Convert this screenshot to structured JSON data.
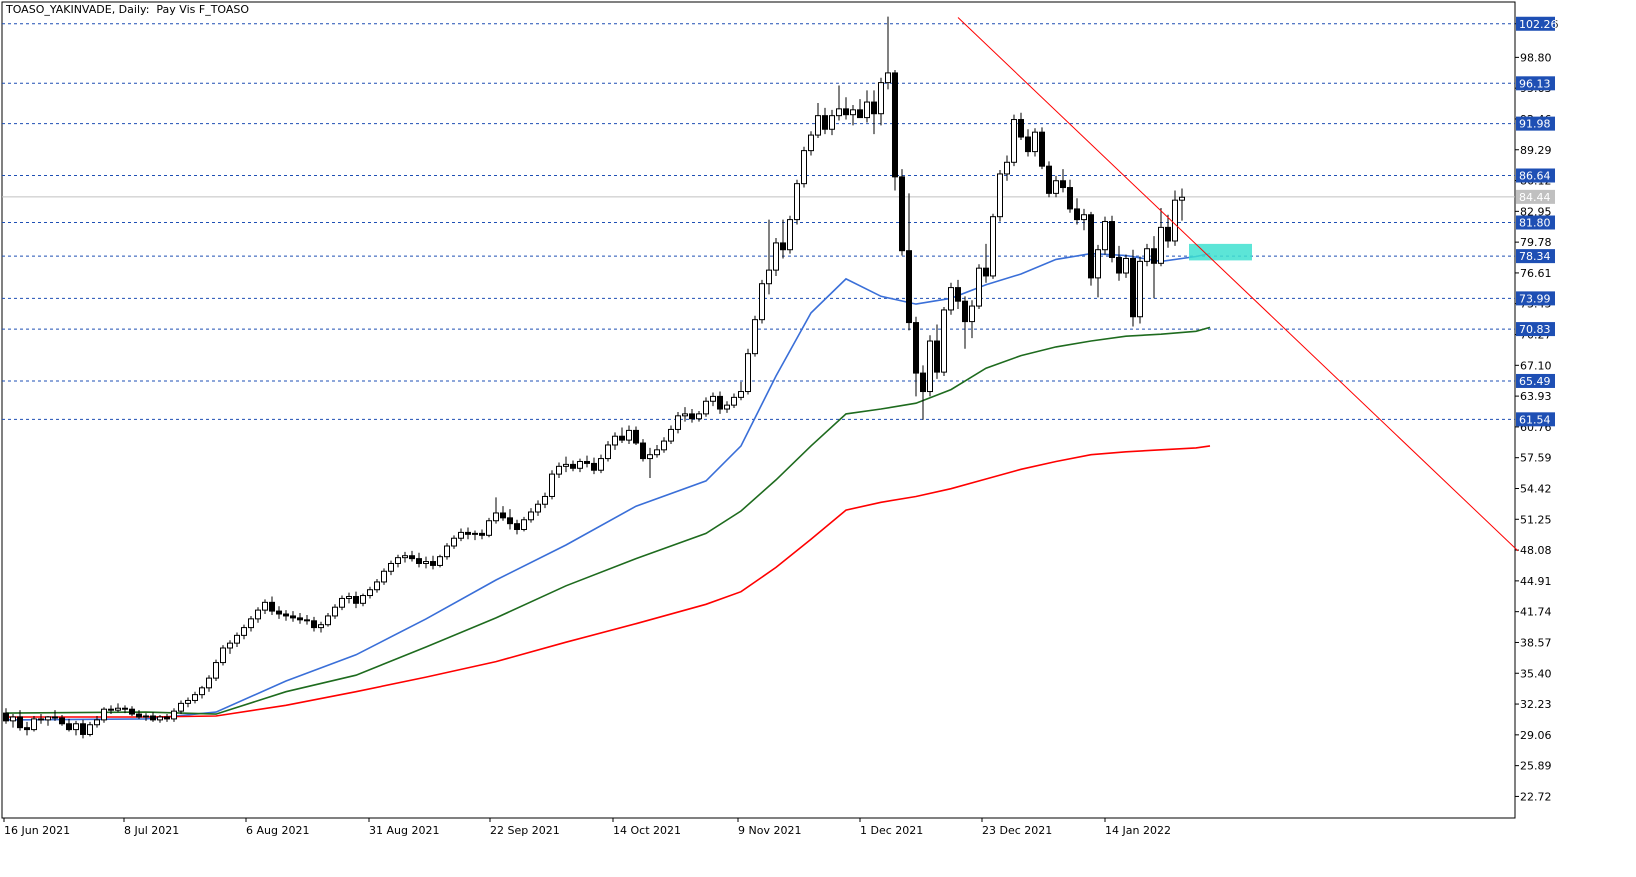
{
  "chart_data": {
    "type": "candlestick",
    "title": "TOASO_YAKINVADE, Daily:  Pay Vis F_TOASO",
    "timeframe": "Daily",
    "y_axis_ticks": [
      "102.26",
      "98.80",
      "95.63",
      "92.46",
      "89.29",
      "86.12",
      "82.95",
      "79.78",
      "76.61",
      "73.45",
      "70.27",
      "67.10",
      "63.93",
      "60.76",
      "57.59",
      "54.42",
      "51.25",
      "48.08",
      "44.91",
      "41.74",
      "38.57",
      "35.40",
      "32.23",
      "29.06",
      "25.89",
      "22.72"
    ],
    "x_axis_ticks": [
      "16 Jun 2021",
      "8 Jul 2021",
      "6 Aug 2021",
      "31 Aug 2021",
      "22 Sep 2021",
      "14 Oct 2021",
      "9 Nov 2021",
      "1 Dec 2021",
      "23 Dec 2021",
      "14 Jan 2022"
    ],
    "price_levels": [
      "102.26",
      "96.13",
      "91.98",
      "86.64",
      "81.80",
      "78.34",
      "73.99",
      "70.83",
      "65.49",
      "61.54"
    ],
    "current_price": "84.44",
    "ylim": [
      20.5,
      104.5
    ],
    "candles": [
      [
        31.3,
        31.8,
        30.2,
        30.5
      ],
      [
        30.5,
        31.2,
        29.8,
        30.9
      ],
      [
        30.9,
        31.6,
        29.5,
        29.8
      ],
      [
        29.8,
        30.4,
        29.0,
        29.6
      ],
      [
        29.6,
        31.0,
        29.4,
        30.7
      ],
      [
        30.7,
        31.2,
        30.2,
        30.6
      ],
      [
        30.6,
        31.0,
        30.0,
        30.9
      ],
      [
        30.9,
        31.6,
        30.5,
        30.8
      ],
      [
        30.8,
        31.1,
        30.0,
        30.2
      ],
      [
        30.2,
        30.7,
        29.4,
        29.6
      ],
      [
        29.6,
        30.5,
        29.0,
        30.2
      ],
      [
        30.2,
        30.6,
        28.7,
        29.1
      ],
      [
        29.1,
        30.4,
        28.9,
        30.1
      ],
      [
        30.1,
        31.0,
        29.8,
        30.6
      ],
      [
        30.6,
        31.9,
        30.3,
        31.7
      ],
      [
        31.7,
        32.1,
        31.2,
        31.6
      ],
      [
        31.6,
        32.3,
        31.4,
        31.8
      ],
      [
        31.8,
        32.1,
        31.3,
        31.7
      ],
      [
        31.7,
        32.0,
        31.0,
        31.2
      ],
      [
        31.2,
        31.6,
        30.7,
        30.9
      ],
      [
        30.9,
        31.3,
        30.5,
        31.0
      ],
      [
        31.0,
        31.4,
        30.4,
        30.6
      ],
      [
        30.6,
        31.1,
        30.3,
        30.9
      ],
      [
        30.9,
        31.2,
        30.4,
        30.7
      ],
      [
        30.7,
        31.8,
        30.4,
        31.5
      ],
      [
        31.5,
        32.6,
        31.2,
        32.3
      ],
      [
        32.3,
        32.9,
        31.9,
        32.6
      ],
      [
        32.6,
        33.5,
        32.3,
        33.2
      ],
      [
        33.2,
        34.1,
        32.8,
        33.9
      ],
      [
        33.9,
        35.2,
        33.5,
        34.9
      ],
      [
        34.9,
        36.8,
        34.6,
        36.5
      ],
      [
        36.5,
        38.3,
        36.2,
        38.0
      ],
      [
        38.0,
        38.8,
        37.4,
        38.5
      ],
      [
        38.5,
        39.6,
        38.1,
        39.3
      ],
      [
        39.3,
        40.4,
        38.9,
        40.1
      ],
      [
        40.1,
        41.3,
        39.7,
        41.0
      ],
      [
        41.0,
        42.2,
        40.6,
        41.9
      ],
      [
        41.9,
        43.0,
        41.5,
        42.7
      ],
      [
        42.7,
        43.3,
        41.4,
        41.8
      ],
      [
        41.8,
        42.3,
        41.0,
        41.5
      ],
      [
        41.5,
        41.9,
        40.8,
        41.3
      ],
      [
        41.3,
        41.8,
        40.7,
        41.1
      ],
      [
        41.1,
        41.6,
        40.5,
        40.9
      ],
      [
        40.9,
        41.4,
        40.4,
        40.8
      ],
      [
        40.8,
        41.2,
        39.7,
        40.1
      ],
      [
        40.1,
        40.7,
        39.6,
        40.4
      ],
      [
        40.4,
        41.6,
        40.2,
        41.3
      ],
      [
        41.3,
        42.5,
        41.0,
        42.2
      ],
      [
        42.2,
        43.4,
        41.9,
        43.1
      ],
      [
        43.1,
        43.7,
        42.6,
        43.3
      ],
      [
        43.3,
        43.8,
        42.1,
        42.6
      ],
      [
        42.6,
        43.6,
        42.3,
        43.4
      ],
      [
        43.4,
        44.3,
        43.1,
        44.0
      ],
      [
        44.0,
        45.1,
        43.7,
        44.8
      ],
      [
        44.8,
        46.2,
        44.5,
        45.9
      ],
      [
        45.9,
        47.0,
        45.5,
        46.7
      ],
      [
        46.7,
        47.6,
        46.3,
        47.3
      ],
      [
        47.3,
        47.9,
        46.8,
        47.5
      ],
      [
        47.5,
        48.0,
        46.9,
        47.2
      ],
      [
        47.2,
        47.8,
        46.3,
        46.7
      ],
      [
        46.7,
        47.4,
        46.2,
        46.9
      ],
      [
        46.9,
        47.5,
        46.1,
        46.5
      ],
      [
        46.5,
        47.6,
        46.3,
        47.4
      ],
      [
        47.4,
        48.8,
        47.1,
        48.5
      ],
      [
        48.5,
        49.6,
        48.2,
        49.3
      ],
      [
        49.3,
        50.3,
        49.0,
        49.9
      ],
      [
        49.9,
        50.4,
        49.2,
        49.7
      ],
      [
        49.7,
        50.1,
        49.1,
        49.8
      ],
      [
        49.8,
        50.2,
        49.2,
        49.6
      ],
      [
        49.6,
        51.4,
        49.4,
        51.1
      ],
      [
        51.1,
        53.5,
        50.8,
        51.9
      ],
      [
        51.9,
        52.6,
        51.1,
        51.4
      ],
      [
        51.4,
        52.3,
        50.2,
        50.8
      ],
      [
        50.8,
        51.2,
        49.7,
        50.2
      ],
      [
        50.2,
        51.5,
        50.0,
        51.2
      ],
      [
        51.2,
        52.4,
        50.9,
        52.0
      ],
      [
        52.0,
        53.2,
        51.6,
        52.8
      ],
      [
        52.8,
        54.0,
        52.4,
        53.6
      ],
      [
        53.6,
        56.3,
        53.3,
        55.9
      ],
      [
        55.9,
        57.1,
        55.5,
        56.7
      ],
      [
        56.7,
        57.7,
        56.1,
        56.9
      ],
      [
        56.9,
        57.3,
        56.2,
        56.5
      ],
      [
        56.5,
        57.5,
        56.1,
        57.2
      ],
      [
        57.2,
        57.8,
        56.6,
        57.0
      ],
      [
        57.0,
        57.6,
        55.9,
        56.3
      ],
      [
        56.3,
        57.9,
        56.0,
        57.5
      ],
      [
        57.5,
        59.3,
        57.2,
        58.9
      ],
      [
        58.9,
        60.2,
        58.4,
        59.8
      ],
      [
        59.8,
        60.7,
        59.1,
        59.4
      ],
      [
        59.4,
        60.9,
        59.0,
        60.4
      ],
      [
        60.4,
        60.8,
        58.9,
        59.1
      ],
      [
        59.1,
        59.5,
        57.2,
        57.5
      ],
      [
        57.5,
        58.6,
        55.5,
        57.9
      ],
      [
        57.9,
        58.9,
        57.6,
        58.4
      ],
      [
        58.4,
        59.7,
        58.1,
        59.3
      ],
      [
        59.3,
        60.9,
        59.0,
        60.5
      ],
      [
        60.5,
        62.3,
        60.1,
        61.9
      ],
      [
        61.9,
        62.8,
        61.3,
        62.1
      ],
      [
        62.1,
        62.6,
        61.2,
        61.6
      ],
      [
        61.6,
        62.4,
        61.3,
        62.1
      ],
      [
        62.1,
        63.8,
        61.8,
        63.4
      ],
      [
        63.4,
        64.3,
        62.9,
        63.9
      ],
      [
        63.9,
        64.4,
        62.1,
        62.6
      ],
      [
        62.6,
        63.4,
        62.2,
        63.0
      ],
      [
        63.0,
        64.2,
        62.7,
        63.8
      ],
      [
        63.8,
        65.4,
        63.5,
        64.4
      ],
      [
        64.4,
        68.8,
        64.1,
        68.3
      ],
      [
        68.3,
        72.2,
        68.0,
        71.8
      ],
      [
        71.8,
        75.9,
        71.4,
        75.5
      ],
      [
        75.5,
        82.1,
        74.4,
        76.9
      ],
      [
        76.9,
        80.2,
        76.3,
        79.7
      ],
      [
        79.7,
        82.1,
        78.1,
        79.0
      ],
      [
        79.0,
        82.5,
        78.6,
        82.1
      ],
      [
        82.1,
        86.2,
        81.6,
        85.8
      ],
      [
        85.8,
        89.6,
        85.4,
        89.2
      ],
      [
        89.2,
        91.2,
        88.7,
        90.8
      ],
      [
        90.8,
        94.1,
        90.5,
        92.8
      ],
      [
        92.8,
        93.6,
        90.9,
        91.4
      ],
      [
        91.4,
        93.4,
        90.8,
        92.8
      ],
      [
        92.8,
        95.9,
        92.3,
        93.5
      ],
      [
        93.5,
        94.7,
        92.4,
        92.9
      ],
      [
        92.9,
        93.9,
        91.8,
        93.4
      ],
      [
        93.4,
        94.5,
        92.6,
        92.6
      ],
      [
        92.6,
        95.4,
        92.1,
        94.2
      ],
      [
        94.2,
        95.4,
        90.9,
        93.0
      ],
      [
        93.0,
        96.7,
        91.8,
        96.2
      ],
      [
        96.2,
        103.0,
        95.5,
        97.2
      ],
      [
        97.2,
        97.5,
        85.1,
        86.5
      ],
      [
        86.5,
        87.3,
        78.4,
        78.9
      ],
      [
        78.9,
        84.8,
        70.7,
        71.5
      ],
      [
        71.5,
        72.1,
        63.9,
        66.3
      ],
      [
        66.3,
        67.1,
        61.5,
        64.4
      ],
      [
        64.4,
        70.2,
        63.9,
        69.6
      ],
      [
        69.6,
        71.3,
        65.7,
        66.4
      ],
      [
        66.4,
        73.1,
        66.0,
        72.8
      ],
      [
        72.8,
        75.6,
        72.3,
        75.1
      ],
      [
        75.1,
        75.9,
        72.9,
        73.7
      ],
      [
        73.7,
        74.2,
        68.8,
        71.6
      ],
      [
        71.6,
        73.8,
        69.9,
        73.2
      ],
      [
        73.2,
        77.5,
        72.9,
        77.1
      ],
      [
        77.1,
        79.6,
        75.6,
        76.3
      ],
      [
        76.3,
        82.7,
        76.0,
        82.4
      ],
      [
        82.4,
        87.2,
        81.9,
        86.8
      ],
      [
        86.8,
        88.7,
        86.1,
        88.0
      ],
      [
        88.0,
        92.9,
        87.6,
        92.4
      ],
      [
        92.4,
        93.1,
        90.3,
        90.6
      ],
      [
        90.6,
        91.4,
        88.6,
        89.1
      ],
      [
        89.1,
        91.5,
        88.6,
        91.1
      ],
      [
        91.1,
        91.6,
        87.3,
        87.6
      ],
      [
        87.6,
        88.1,
        84.4,
        84.8
      ],
      [
        84.8,
        86.6,
        84.4,
        86.1
      ],
      [
        86.1,
        87.3,
        84.9,
        85.4
      ],
      [
        85.4,
        86.2,
        82.8,
        83.2
      ],
      [
        83.2,
        84.3,
        81.6,
        82.1
      ],
      [
        82.1,
        83.2,
        81.0,
        82.6
      ],
      [
        82.6,
        82.9,
        75.3,
        76.1
      ],
      [
        76.1,
        79.5,
        74.1,
        79.0
      ],
      [
        79.0,
        82.4,
        78.5,
        81.9
      ],
      [
        81.9,
        82.5,
        77.7,
        78.2
      ],
      [
        78.2,
        79.4,
        75.8,
        76.6
      ],
      [
        76.6,
        78.5,
        76.1,
        78.1
      ],
      [
        78.1,
        79.0,
        71.1,
        72.1
      ],
      [
        72.1,
        78.3,
        71.4,
        77.8
      ],
      [
        77.8,
        79.6,
        77.3,
        79.1
      ],
      [
        79.1,
        80.4,
        74.0,
        77.6
      ],
      [
        77.6,
        83.3,
        77.3,
        81.3
      ],
      [
        81.3,
        82.6,
        79.2,
        79.9
      ],
      [
        79.9,
        85.1,
        79.4,
        84.1
      ],
      [
        84.1,
        85.3,
        82.0,
        84.4
      ]
    ],
    "series": [
      {
        "name": "",
        "color": "#3a6fd8",
        "values": [
          [
            0,
            30.6
          ],
          [
            20,
            30.7
          ],
          [
            30,
            31.4
          ],
          [
            40,
            34.6
          ],
          [
            50,
            37.3
          ],
          [
            60,
            41.0
          ],
          [
            70,
            45.0
          ],
          [
            80,
            48.6
          ],
          [
            90,
            52.6
          ],
          [
            100,
            55.2
          ],
          [
            105,
            58.8
          ],
          [
            110,
            66.0
          ],
          [
            115,
            72.5
          ],
          [
            120,
            76.0
          ],
          [
            125,
            74.2
          ],
          [
            130,
            73.4
          ],
          [
            135,
            74.0
          ],
          [
            140,
            75.4
          ],
          [
            145,
            76.5
          ],
          [
            150,
            78.0
          ],
          [
            155,
            78.6
          ],
          [
            160,
            78.4
          ],
          [
            165,
            77.8
          ],
          [
            170,
            78.3
          ],
          [
            172,
            78.6
          ]
        ]
      },
      {
        "name": "",
        "color": "#1e6b1e",
        "values": [
          [
            0,
            31.3
          ],
          [
            20,
            31.4
          ],
          [
            30,
            31.2
          ],
          [
            40,
            33.5
          ],
          [
            50,
            35.2
          ],
          [
            60,
            38.1
          ],
          [
            70,
            41.1
          ],
          [
            80,
            44.4
          ],
          [
            90,
            47.2
          ],
          [
            100,
            49.8
          ],
          [
            105,
            52.1
          ],
          [
            110,
            55.3
          ],
          [
            115,
            58.8
          ],
          [
            120,
            62.1
          ],
          [
            125,
            62.6
          ],
          [
            130,
            63.2
          ],
          [
            135,
            64.6
          ],
          [
            140,
            66.8
          ],
          [
            145,
            68.1
          ],
          [
            150,
            69.0
          ],
          [
            155,
            69.6
          ],
          [
            160,
            70.1
          ],
          [
            165,
            70.3
          ],
          [
            170,
            70.6
          ],
          [
            172,
            71.0
          ]
        ]
      },
      {
        "name": "",
        "color": "#ff0000",
        "values": [
          [
            0,
            30.9
          ],
          [
            20,
            30.9
          ],
          [
            30,
            31.0
          ],
          [
            40,
            32.1
          ],
          [
            50,
            33.5
          ],
          [
            60,
            35.0
          ],
          [
            70,
            36.6
          ],
          [
            80,
            38.6
          ],
          [
            90,
            40.5
          ],
          [
            100,
            42.5
          ],
          [
            105,
            43.8
          ],
          [
            110,
            46.3
          ],
          [
            115,
            49.2
          ],
          [
            120,
            52.2
          ],
          [
            125,
            53.0
          ],
          [
            130,
            53.6
          ],
          [
            135,
            54.4
          ],
          [
            140,
            55.4
          ],
          [
            145,
            56.4
          ],
          [
            150,
            57.2
          ],
          [
            155,
            57.9
          ],
          [
            160,
            58.2
          ],
          [
            165,
            58.4
          ],
          [
            170,
            58.6
          ],
          [
            172,
            58.8
          ]
        ]
      }
    ],
    "trendline": {
      "color": "#ff0000",
      "from": [
        136,
        102.9
      ],
      "to": [
        216,
        48.0
      ]
    },
    "highlight_zone": {
      "color": "#40e0d0",
      "x_from": 169,
      "x_to": 178,
      "y_from": 77.9,
      "y_to": 79.6
    },
    "level_color": "#1e4fb4",
    "grid": false
  }
}
